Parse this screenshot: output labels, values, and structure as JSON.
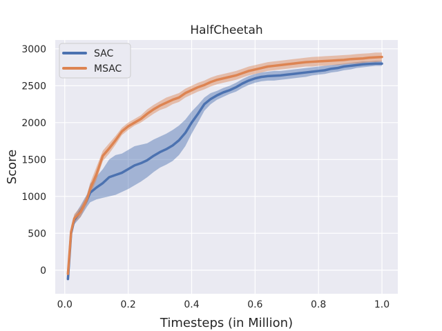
{
  "chart_data": {
    "type": "line",
    "title": "HalfCheetah",
    "xlabel": "Timesteps (in Million)",
    "ylabel": "Score",
    "xlim": [
      -0.03,
      1.05
    ],
    "ylim": [
      -320,
      3120
    ],
    "xticks": [
      0.0,
      0.2,
      0.4,
      0.6,
      0.8,
      1.0
    ],
    "xtick_labels": [
      "0.0",
      "0.2",
      "0.4",
      "0.6",
      "0.8",
      "1.0"
    ],
    "yticks": [
      0,
      500,
      1000,
      1500,
      2000,
      2500,
      3000
    ],
    "ytick_labels": [
      "0",
      "500",
      "1000",
      "1500",
      "2000",
      "2500",
      "3000"
    ],
    "grid": true,
    "legend_position": "top-left",
    "background_color": "#eaeaf2",
    "series": [
      {
        "name": "SAC",
        "color": "#4c72b0",
        "x": [
          0.01,
          0.02,
          0.03,
          0.05,
          0.07,
          0.08,
          0.1,
          0.12,
          0.14,
          0.16,
          0.18,
          0.2,
          0.22,
          0.24,
          0.26,
          0.28,
          0.3,
          0.32,
          0.34,
          0.36,
          0.38,
          0.4,
          0.42,
          0.44,
          0.46,
          0.48,
          0.5,
          0.52,
          0.54,
          0.56,
          0.58,
          0.6,
          0.62,
          0.64,
          0.66,
          0.68,
          0.7,
          0.72,
          0.74,
          0.76,
          0.78,
          0.8,
          0.82,
          0.84,
          0.86,
          0.88,
          0.9,
          0.92,
          0.94,
          0.96,
          0.98,
          1.0
        ],
        "y": [
          -120,
          500,
          680,
          800,
          950,
          1050,
          1120,
          1180,
          1260,
          1290,
          1320,
          1370,
          1420,
          1450,
          1490,
          1550,
          1600,
          1640,
          1690,
          1760,
          1860,
          2000,
          2120,
          2250,
          2320,
          2370,
          2410,
          2440,
          2480,
          2530,
          2570,
          2600,
          2620,
          2630,
          2635,
          2640,
          2650,
          2660,
          2670,
          2680,
          2690,
          2700,
          2710,
          2730,
          2740,
          2760,
          2770,
          2780,
          2790,
          2795,
          2800,
          2800
        ],
        "band_lower": [
          -150,
          430,
          620,
          720,
          860,
          920,
          960,
          980,
          1000,
          1020,
          1060,
          1100,
          1150,
          1200,
          1260,
          1330,
          1390,
          1430,
          1480,
          1560,
          1680,
          1850,
          2000,
          2160,
          2250,
          2310,
          2350,
          2390,
          2420,
          2470,
          2510,
          2540,
          2560,
          2570,
          2570,
          2580,
          2590,
          2600,
          2610,
          2620,
          2640,
          2650,
          2660,
          2680,
          2690,
          2710,
          2720,
          2740,
          2750,
          2760,
          2770,
          2770
        ],
        "band_upper": [
          -80,
          560,
          740,
          880,
          1030,
          1170,
          1270,
          1370,
          1500,
          1560,
          1580,
          1630,
          1680,
          1700,
          1720,
          1770,
          1810,
          1850,
          1900,
          1960,
          2040,
          2150,
          2240,
          2340,
          2400,
          2430,
          2470,
          2500,
          2540,
          2590,
          2630,
          2660,
          2680,
          2690,
          2700,
          2700,
          2710,
          2720,
          2730,
          2740,
          2750,
          2760,
          2770,
          2780,
          2790,
          2800,
          2810,
          2820,
          2830,
          2830,
          2840,
          2840
        ]
      },
      {
        "name": "MSAC",
        "color": "#dd8452",
        "x": [
          0.01,
          0.02,
          0.03,
          0.05,
          0.07,
          0.08,
          0.1,
          0.12,
          0.14,
          0.16,
          0.18,
          0.2,
          0.22,
          0.24,
          0.26,
          0.28,
          0.3,
          0.32,
          0.34,
          0.36,
          0.38,
          0.4,
          0.42,
          0.44,
          0.46,
          0.48,
          0.5,
          0.52,
          0.54,
          0.56,
          0.58,
          0.6,
          0.62,
          0.64,
          0.66,
          0.68,
          0.7,
          0.72,
          0.74,
          0.76,
          0.78,
          0.8,
          0.82,
          0.84,
          0.86,
          0.88,
          0.9,
          0.92,
          0.94,
          0.96,
          0.98,
          1.0
        ],
        "y": [
          -50,
          520,
          700,
          790,
          960,
          1100,
          1300,
          1550,
          1650,
          1760,
          1880,
          1950,
          2000,
          2050,
          2120,
          2180,
          2230,
          2270,
          2310,
          2340,
          2400,
          2440,
          2480,
          2510,
          2550,
          2580,
          2600,
          2620,
          2640,
          2670,
          2700,
          2720,
          2740,
          2760,
          2770,
          2780,
          2790,
          2800,
          2810,
          2820,
          2825,
          2830,
          2835,
          2840,
          2845,
          2850,
          2860,
          2865,
          2870,
          2880,
          2885,
          2890
        ],
        "band_lower": [
          -100,
          440,
          640,
          720,
          900,
          1020,
          1220,
          1480,
          1580,
          1700,
          1830,
          1900,
          1960,
          2000,
          2060,
          2120,
          2170,
          2200,
          2250,
          2280,
          2340,
          2380,
          2420,
          2450,
          2490,
          2520,
          2540,
          2560,
          2580,
          2610,
          2640,
          2660,
          2680,
          2700,
          2710,
          2720,
          2730,
          2740,
          2750,
          2760,
          2760,
          2770,
          2770,
          2780,
          2780,
          2790,
          2800,
          2800,
          2810,
          2820,
          2820,
          2830
        ],
        "band_upper": [
          0,
          600,
          760,
          860,
          1020,
          1180,
          1400,
          1620,
          1720,
          1820,
          1930,
          2000,
          2050,
          2100,
          2180,
          2240,
          2290,
          2340,
          2370,
          2400,
          2460,
          2500,
          2540,
          2570,
          2610,
          2640,
          2660,
          2680,
          2700,
          2730,
          2760,
          2780,
          2800,
          2820,
          2830,
          2840,
          2850,
          2860,
          2870,
          2880,
          2890,
          2895,
          2900,
          2905,
          2910,
          2915,
          2920,
          2930,
          2935,
          2940,
          2950,
          2950
        ]
      }
    ]
  }
}
